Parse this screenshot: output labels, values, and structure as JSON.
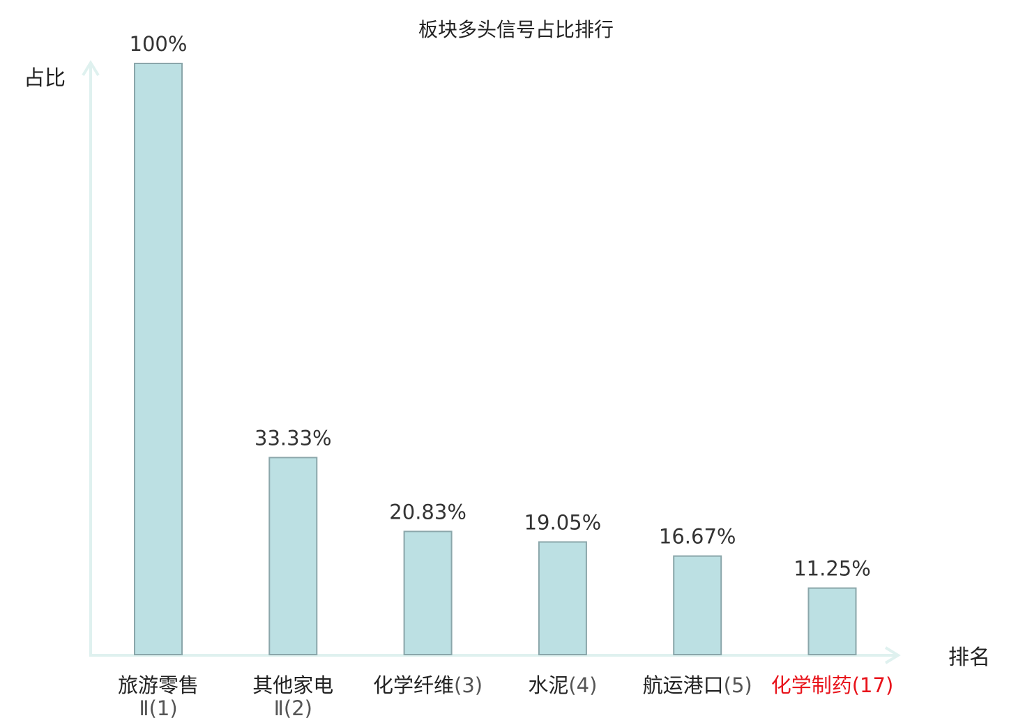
{
  "chart_data": {
    "type": "bar",
    "title": "板块多头信号占比排行",
    "ylabel": "占比",
    "xlabel": "排名",
    "ylim": [
      0,
      100
    ],
    "grid": false,
    "categories": [
      {
        "name": "旅游零售Ⅱ",
        "rank": "(1)",
        "value": 100,
        "label": "100%",
        "highlight": false
      },
      {
        "name": "其他家电Ⅱ",
        "rank": "(2)",
        "value": 33.33,
        "label": "33.33%",
        "highlight": false
      },
      {
        "name": "化学纤维",
        "rank": "(3)",
        "value": 20.83,
        "label": "20.83%",
        "highlight": false
      },
      {
        "name": "水泥",
        "rank": "(4)",
        "value": 19.05,
        "label": "19.05%",
        "highlight": false
      },
      {
        "name": "航运港口",
        "rank": "(5)",
        "value": 16.67,
        "label": "16.67%",
        "highlight": false
      },
      {
        "name": "化学制药",
        "rank": "(17)",
        "value": 11.25,
        "label": "11.25%",
        "highlight": true
      }
    ],
    "colors": {
      "bar_fill": "#bce0e3",
      "bar_stroke": "#8aa6aa",
      "axis": "#dff1ef",
      "highlight_text": "#e8131b"
    }
  }
}
